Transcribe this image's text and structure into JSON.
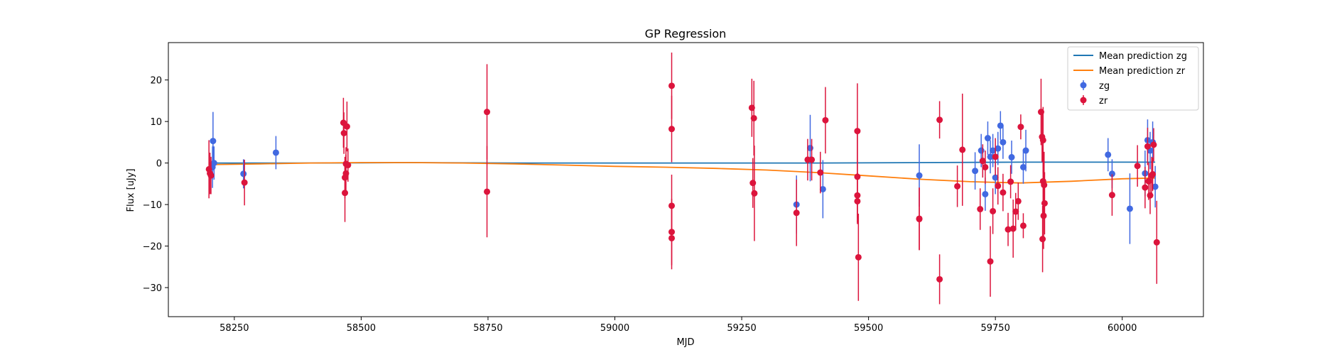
{
  "chart_data": {
    "type": "scatter",
    "title": "GP Regression",
    "xlabel": "MJD",
    "ylabel": "Flux [uJy]",
    "xlim": [
      58120,
      60160
    ],
    "ylim": [
      -37,
      29
    ],
    "xticks": [
      58250,
      58500,
      58750,
      59000,
      59250,
      59500,
      59750,
      60000
    ],
    "yticks": [
      -30,
      -20,
      -10,
      0,
      10,
      20
    ],
    "grid": false,
    "legend_position": "top-right",
    "legend": [
      "Mean prediction zg",
      "Mean prediction zr",
      "zg",
      "zr"
    ],
    "series": [
      {
        "name": "Mean prediction zg",
        "kind": "line",
        "color": "#1f77b4",
        "x": [
          58200,
          58400,
          58600,
          58800,
          59000,
          59200,
          59400,
          59600,
          59800,
          60000,
          60065
        ],
        "y": [
          0.0,
          0.0,
          0.1,
          0.0,
          0.0,
          0.0,
          0.0,
          0.1,
          0.2,
          0.2,
          0.2
        ]
      },
      {
        "name": "Mean prediction zr",
        "kind": "line",
        "color": "#ff7f0e",
        "x": [
          58200,
          58300,
          58400,
          58500,
          58600,
          58700,
          58800,
          58900,
          59000,
          59100,
          59200,
          59300,
          59400,
          59500,
          59600,
          59700,
          59800,
          59900,
          60000,
          60065
        ],
        "y": [
          -0.4,
          -0.2,
          0.0,
          0.1,
          0.1,
          0.0,
          -0.2,
          -0.5,
          -0.8,
          -1.0,
          -1.3,
          -1.7,
          -2.3,
          -3.1,
          -3.9,
          -4.5,
          -4.8,
          -4.4,
          -3.8,
          -3.6
        ]
      },
      {
        "name": "zg",
        "kind": "errorbar",
        "color": "#4169e1",
        "x": [
          58208,
          58207,
          58210,
          58268,
          58332,
          59358,
          59385,
          59410,
          59600,
          59710,
          59722,
          59725,
          59730,
          59735,
          59740,
          59745,
          59750,
          59755,
          59760,
          59765,
          59782,
          59805,
          59810,
          59972,
          59980,
          60015,
          60045,
          60050,
          60055,
          60060,
          60065
        ],
        "y": [
          5.3,
          -1.0,
          0.0,
          -2.6,
          2.5,
          -10.0,
          3.6,
          -6.3,
          -3.0,
          -1.9,
          3.0,
          0.5,
          -7.5,
          6.0,
          1.5,
          3.0,
          -3.5,
          3.5,
          9.0,
          5.0,
          1.4,
          -1.0,
          3.0,
          2.0,
          -2.6,
          -11.0,
          -2.5,
          5.5,
          3.0,
          5.0,
          -5.7
        ],
        "err": [
          7.0,
          5.0,
          4.0,
          3.5,
          4.0,
          7.0,
          8.0,
          7.0,
          7.5,
          4.5,
          4.0,
          4.0,
          4.0,
          4.0,
          4.0,
          4.0,
          4.0,
          4.0,
          3.5,
          4.0,
          4.0,
          4.0,
          5.0,
          4.0,
          3.5,
          8.5,
          5.5,
          5.0,
          4.5,
          5.0,
          5.0
        ]
      },
      {
        "name": "zr",
        "kind": "errorbar",
        "color": "#dc143c",
        "x": [
          58200,
          58202,
          58204,
          58270,
          58465,
          58466,
          58468,
          58470,
          58472,
          58474,
          58468,
          58470,
          58748,
          58748,
          59112,
          59112,
          59112,
          59112,
          59112,
          59270,
          59272,
          59274,
          59275,
          59358,
          59380,
          59388,
          59405,
          59415,
          59478,
          59478,
          59478,
          59478,
          59480,
          59600,
          59600,
          59640,
          59640,
          59675,
          59685,
          59720,
          59725,
          59730,
          59740,
          59745,
          59750,
          59755,
          59765,
          59775,
          59780,
          59785,
          59790,
          59795,
          59800,
          59805,
          59840,
          59842,
          59844,
          59844,
          59846,
          59843,
          59845,
          59847,
          59980,
          60030,
          60045,
          60050,
          60052,
          60055,
          60058,
          60060,
          60062,
          60068
        ],
        "y": [
          -1.5,
          -2.5,
          -3.0,
          -4.7,
          9.7,
          7.2,
          -3.5,
          -2.5,
          8.8,
          -0.5,
          -7.2,
          -0.2,
          12.3,
          -6.9,
          18.6,
          8.2,
          -10.3,
          -16.6,
          -18.1,
          13.3,
          -4.8,
          10.8,
          -7.3,
          -12.0,
          0.8,
          0.8,
          -2.3,
          10.3,
          7.7,
          -3.3,
          -7.8,
          -9.2,
          -22.7,
          -13.5,
          -13.4,
          -28.0,
          10.4,
          -5.6,
          3.2,
          -11.1,
          0.5,
          -1.0,
          -23.7,
          -11.6,
          1.5,
          -5.5,
          -7.1,
          -16.0,
          -4.5,
          -15.8,
          -11.7,
          -9.2,
          8.7,
          -15.1,
          12.3,
          6.3,
          5.5,
          -4.4,
          -5.3,
          -18.3,
          -12.7,
          -9.7,
          -7.7,
          -0.7,
          -5.9,
          4.0,
          -4.4,
          -7.8,
          -3.0,
          -2.7,
          4.4,
          -19.1
        ],
        "err": [
          7.0,
          5.0,
          4.5,
          5.5,
          6.0,
          5.0,
          5.0,
          4.5,
          6.0,
          4.0,
          7.0,
          4.0,
          11.5,
          11.0,
          8.0,
          8.0,
          7.5,
          8.0,
          7.5,
          7.0,
          6.0,
          9.0,
          11.5,
          8.0,
          5.0,
          5.0,
          5.0,
          8.0,
          11.5,
          11.0,
          5.5,
          5.5,
          10.5,
          7.5,
          7.5,
          6.0,
          4.5,
          5.0,
          13.5,
          5.0,
          4.0,
          4.0,
          8.5,
          5.5,
          4.5,
          4.5,
          4.5,
          4.0,
          4.0,
          7.0,
          4.5,
          4.5,
          3.0,
          3.0,
          8.0,
          6.0,
          8.0,
          8.0,
          8.0,
          8.0,
          8.0,
          7.5,
          5.0,
          5.0,
          5.0,
          4.5,
          4.5,
          4.5,
          4.5,
          4.0,
          4.0,
          10.0
        ]
      }
    ]
  }
}
